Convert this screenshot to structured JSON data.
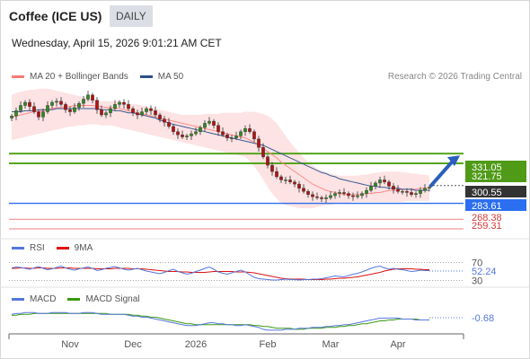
{
  "header": {
    "title": "Coffee (ICE US)",
    "period": "DAILY",
    "datetime": "Wednesday, April 15, 2026 9:01:21 AM CET",
    "copyright": "Research © 2026 Trading Central"
  },
  "legends": {
    "main": [
      {
        "label": "MA 20 + Bollinger Bands",
        "color": "#ff7a78"
      },
      {
        "label": "MA 50",
        "color": "#2d4e8a"
      }
    ],
    "rsi": [
      {
        "label": "RSI",
        "color": "#5577dd"
      },
      {
        "label": "9MA",
        "color": "#dd1111"
      }
    ],
    "macd": [
      {
        "label": "MACD",
        "color": "#5577dd"
      },
      {
        "label": "MACD Signal",
        "color": "#3a9a10"
      }
    ]
  },
  "chart_data": [
    {
      "type": "candlestick",
      "x_tick_labels": [
        "Nov",
        "Dec",
        "2026",
        "Feb",
        "Mar",
        "Apr"
      ],
      "ylim": [
        255,
        392
      ],
      "close_series": [
        367,
        372,
        377,
        380,
        376,
        371,
        366,
        371,
        377,
        380,
        381,
        378,
        373,
        371,
        375,
        379,
        383,
        387,
        382,
        373,
        368,
        370,
        374,
        378,
        380,
        378,
        374,
        370,
        368,
        371,
        374,
        372,
        368,
        364,
        361,
        357,
        352,
        349,
        347,
        348,
        350,
        352,
        356,
        360,
        362,
        358,
        352,
        349,
        346,
        346,
        348,
        352,
        355,
        352,
        345,
        337,
        328,
        320,
        314,
        309,
        306,
        306,
        304,
        302,
        298,
        295,
        292,
        290,
        289,
        288,
        289,
        291,
        293,
        294,
        293,
        291,
        290,
        291,
        293,
        296,
        300,
        303,
        306,
        304,
        300,
        297,
        295,
        295,
        294,
        292,
        293,
        296,
        298,
        299
      ],
      "ma20": [
        366,
        367,
        368,
        369,
        370,
        371,
        371,
        372,
        373,
        374,
        375,
        375,
        376,
        376,
        377,
        377,
        377,
        377,
        377,
        376,
        376,
        375,
        375,
        375,
        374,
        373,
        372,
        371,
        370,
        369,
        368,
        367,
        366,
        365,
        364,
        363,
        362,
        361,
        360,
        359,
        358,
        357,
        356,
        355,
        354,
        353,
        352,
        351,
        350,
        349,
        348,
        347,
        346,
        344,
        342,
        339,
        336,
        333,
        330,
        327,
        323,
        320,
        317,
        314,
        311,
        308,
        305,
        302,
        300,
        298,
        296,
        295,
        294,
        293,
        292,
        292,
        292,
        292,
        292,
        293,
        293,
        294,
        294,
        295,
        296,
        296,
        296,
        297,
        297,
        297,
        297,
        298,
        298,
        298
      ],
      "bb_upper": [
        387,
        389,
        390,
        391,
        392,
        392,
        393,
        393,
        393,
        392,
        391,
        390,
        389,
        388,
        387,
        386,
        385,
        384,
        383,
        382,
        381,
        381,
        381,
        381,
        381,
        380,
        379,
        378,
        378,
        377,
        376,
        375,
        374,
        373,
        372,
        371,
        370,
        369,
        368,
        368,
        368,
        368,
        368,
        369,
        369,
        369,
        369,
        370,
        370,
        370,
        370,
        370,
        371,
        371,
        371,
        370,
        369,
        367,
        364,
        360,
        354,
        348,
        342,
        337,
        332,
        327,
        323,
        320,
        317,
        315,
        313,
        312,
        311,
        310,
        310,
        310,
        310,
        310,
        311,
        311,
        312,
        313,
        313,
        314,
        314,
        314,
        314,
        313,
        313,
        312,
        312,
        311,
        311,
        310
      ],
      "bb_lower": [
        344,
        345,
        346,
        347,
        348,
        349,
        350,
        351,
        352,
        353,
        354,
        355,
        356,
        357,
        357,
        358,
        358,
        359,
        359,
        359,
        358,
        358,
        358,
        357,
        356,
        355,
        354,
        353,
        352,
        351,
        350,
        349,
        348,
        347,
        346,
        345,
        344,
        343,
        342,
        341,
        340,
        339,
        338,
        337,
        336,
        335,
        334,
        333,
        332,
        331,
        330,
        329,
        328,
        324,
        319,
        313,
        306,
        299,
        293,
        288,
        284,
        282,
        281,
        280,
        279,
        279,
        279,
        279,
        280,
        281,
        282,
        282,
        283,
        283,
        284,
        284,
        285,
        285,
        285,
        285,
        285,
        285,
        285,
        285,
        285,
        285,
        285,
        285,
        286,
        286,
        286,
        286,
        286,
        286
      ],
      "ma50": [
        371,
        371,
        371,
        372,
        372,
        372,
        373,
        373,
        373,
        373,
        374,
        374,
        374,
        374,
        374,
        374,
        374,
        374,
        374,
        374,
        373,
        373,
        373,
        372,
        372,
        371,
        370,
        370,
        369,
        368,
        367,
        366,
        365,
        363,
        362,
        360,
        359,
        358,
        357,
        356,
        355,
        354,
        353,
        352,
        351,
        350,
        349,
        348,
        347,
        346,
        345,
        344,
        343,
        342,
        341,
        340,
        339,
        337,
        335,
        333,
        331,
        329,
        327,
        325,
        323,
        321,
        319,
        317,
        315,
        313,
        312,
        310,
        309,
        307,
        306,
        305,
        304,
        303,
        302,
        301,
        300,
        300,
        299,
        299,
        298,
        298,
        298,
        297,
        297,
        297,
        296,
        296,
        296,
        296
      ],
      "levels": [
        {
          "value": 331.05,
          "label": "331.05",
          "color": "#55a51c"
        },
        {
          "value": 321.75,
          "label": "321.75",
          "color": "#55a51c"
        },
        {
          "value": 300.55,
          "label": "300.55",
          "color": "#333333"
        },
        {
          "value": 283.61,
          "label": "283.61",
          "color": "#2b6ef0"
        },
        {
          "value": 268.38,
          "label": "268.38",
          "color": "#f29a9a"
        },
        {
          "value": 259.31,
          "label": "259.31",
          "color": "#f29a9a"
        }
      ]
    },
    {
      "type": "line",
      "name": "RSI",
      "ylim": [
        25,
        75
      ],
      "ticks": [
        {
          "value": 70,
          "label": "70"
        },
        {
          "value": 30,
          "label": "30"
        }
      ],
      "last_value": "52.24",
      "rsi": [
        58,
        60,
        59,
        57,
        55,
        58,
        61,
        57,
        54,
        56,
        59,
        62,
        58,
        55,
        53,
        56,
        58,
        60,
        57,
        52,
        54,
        57,
        59,
        61,
        58,
        55,
        53,
        55,
        57,
        54,
        51,
        49,
        47,
        45,
        48,
        52,
        55,
        50,
        47,
        44,
        46,
        50,
        53,
        57,
        60,
        55,
        49,
        46,
        44,
        47,
        50,
        53,
        49,
        43,
        37,
        34,
        33,
        32,
        31,
        31,
        32,
        33,
        32,
        32,
        31,
        32,
        32,
        33,
        33,
        34,
        36,
        38,
        40,
        39,
        38,
        41,
        44,
        46,
        49,
        53,
        57,
        60,
        62,
        58,
        55,
        57,
        55,
        54,
        52,
        50,
        51,
        53,
        52,
        52
      ],
      "ma9": [
        57,
        57,
        58,
        58,
        57,
        57,
        58,
        58,
        57,
        57,
        57,
        58,
        58,
        58,
        57,
        57,
        57,
        57,
        57,
        56,
        56,
        56,
        56,
        57,
        57,
        57,
        57,
        56,
        56,
        56,
        55,
        54,
        53,
        52,
        51,
        50,
        50,
        50,
        49,
        49,
        48,
        48,
        48,
        48,
        49,
        50,
        50,
        50,
        50,
        50,
        49,
        49,
        49,
        48,
        47,
        45,
        43,
        41,
        39,
        37,
        35,
        34,
        33,
        33,
        33,
        33,
        32,
        32,
        32,
        32,
        33,
        33,
        34,
        35,
        35,
        36,
        37,
        38,
        40,
        42,
        44,
        46,
        48,
        51,
        53,
        55,
        56,
        56,
        56,
        56,
        55,
        55,
        54,
        54
      ]
    },
    {
      "type": "line",
      "name": "MACD",
      "ylim": [
        -14,
        12
      ],
      "last_value": "-0.68",
      "macd": [
        5,
        6,
        6,
        7,
        7,
        7,
        6,
        6,
        6,
        7,
        7,
        7,
        7,
        6,
        6,
        6,
        7,
        7,
        7,
        6,
        5,
        5,
        5,
        5,
        5,
        5,
        4,
        3,
        3,
        2,
        2,
        1,
        0,
        -1,
        -2,
        -3,
        -4,
        -5,
        -6,
        -7,
        -7,
        -7,
        -6,
        -5,
        -4,
        -4,
        -5,
        -5,
        -6,
        -6,
        -7,
        -7,
        -6,
        -7,
        -8,
        -9,
        -11,
        -12,
        -12,
        -12,
        -12,
        -11,
        -11,
        -11,
        -10,
        -10,
        -10,
        -9,
        -9,
        -9,
        -8,
        -8,
        -7,
        -7,
        -6,
        -6,
        -5,
        -4,
        -3,
        -2,
        -1,
        0,
        1,
        1,
        1,
        1,
        1,
        0,
        0,
        0,
        -1,
        -1,
        -1,
        -1
      ],
      "signal": [
        4,
        4,
        5,
        5,
        5,
        6,
        6,
        6,
        6,
        6,
        6,
        6,
        6,
        6,
        6,
        6,
        6,
        6,
        6,
        6,
        6,
        6,
        5,
        5,
        5,
        5,
        5,
        4,
        4,
        3,
        3,
        2,
        2,
        1,
        0,
        -1,
        -2,
        -3,
        -4,
        -5,
        -5,
        -6,
        -6,
        -6,
        -6,
        -6,
        -6,
        -6,
        -6,
        -6,
        -6,
        -6,
        -6,
        -6,
        -7,
        -7,
        -8,
        -8,
        -9,
        -10,
        -10,
        -10,
        -10,
        -11,
        -11,
        -11,
        -10,
        -10,
        -10,
        -10,
        -9,
        -9,
        -9,
        -8,
        -8,
        -7,
        -7,
        -6,
        -5,
        -5,
        -4,
        -3,
        -2,
        -2,
        -1,
        -1,
        0,
        0,
        0,
        0,
        0,
        -1,
        -1,
        -1
      ]
    }
  ]
}
